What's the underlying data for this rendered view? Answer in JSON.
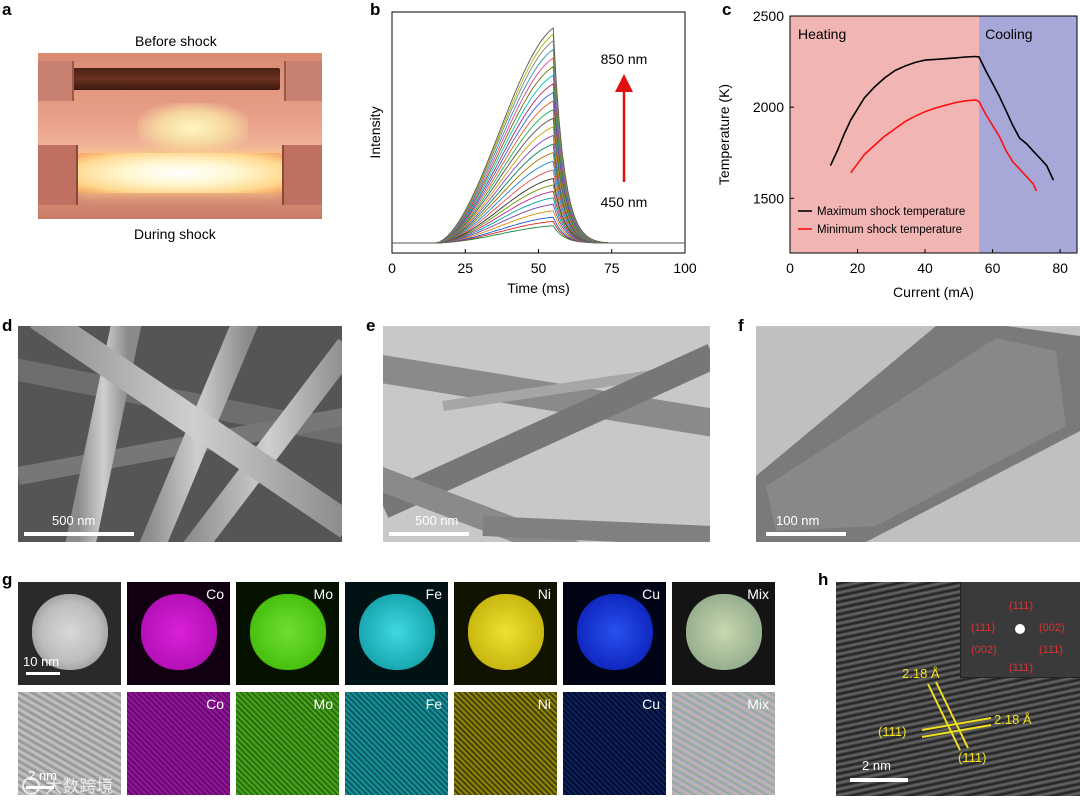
{
  "panels": {
    "a": {
      "label": "a",
      "caption_top": "Before shock",
      "caption_bottom": "During shock"
    },
    "b": {
      "label": "b",
      "arrow_top_label": "850 nm",
      "arrow_bottom_label": "450 nm",
      "colors": {
        "arrow": "#e01010"
      }
    },
    "c": {
      "label": "c",
      "region_heating_label": "Heating",
      "region_cooling_label": "Cooling",
      "colors": {
        "heating": "#f1b5b3",
        "cooling": "#a7a8d8",
        "max": "#000000",
        "min": "#ff1010"
      }
    },
    "d": {
      "label": "d",
      "scale": "500 nm"
    },
    "e": {
      "label": "e",
      "scale": "500 nm"
    },
    "f": {
      "label": "f",
      "scale": "100 nm"
    },
    "g": {
      "label": "g",
      "scale": "10 nm",
      "scale_bottom": "2 nm",
      "tiles": [
        "Co",
        "Mo",
        "Fe",
        "Ni",
        "Cu",
        "Mix"
      ],
      "colors": {
        "Co": "#d01ad8",
        "Mo": "#56d418",
        "Fe": "#20c0c8",
        "Ni": "#e2d820",
        "Cu": "#1030e0",
        "Mix": "#a8c0a0"
      }
    },
    "h": {
      "label": "h",
      "scale": "2 nm",
      "fft_labels": [
        "(111)",
        "(111)",
        "(002)",
        "(002)",
        "(111)",
        "(111)"
      ],
      "d_top": "2.18 Å",
      "d_right": "2.18 Å",
      "plane_left": "(111)",
      "plane_bottom": "(111)"
    }
  },
  "watermark": "大数跨境",
  "chart_data": [
    {
      "type": "line",
      "panel": "b",
      "xlabel": "Time (ms)",
      "ylabel": "Intensity",
      "xlim": [
        0,
        100
      ],
      "xticks": [
        0,
        25,
        50,
        75,
        100
      ],
      "grid": false,
      "legend": "none",
      "note_series": "spectral curves from 450 nm to 850 nm",
      "series_peaks": [
        0.08,
        0.1,
        0.12,
        0.15,
        0.18,
        0.21,
        0.24,
        0.27,
        0.3,
        0.34,
        0.38,
        0.42,
        0.46,
        0.5,
        0.54,
        0.58,
        0.62,
        0.66,
        0.7,
        0.74,
        0.78,
        0.82,
        0.86,
        0.9,
        0.94,
        0.97,
        1.0
      ],
      "pulse": {
        "start": 15,
        "peak": 55,
        "end": 70
      }
    },
    {
      "type": "line",
      "panel": "c",
      "xlabel": "Current (mA)",
      "ylabel": "Temperature (K)",
      "xlim": [
        0,
        85
      ],
      "ylim": [
        1200,
        2500
      ],
      "xticks": [
        0,
        20,
        40,
        60,
        80
      ],
      "yticks": [
        1500,
        2000,
        2500
      ],
      "regions": [
        {
          "name": "Heating",
          "from": 0,
          "to": 56
        },
        {
          "name": "Cooling",
          "from": 56,
          "to": 85
        }
      ],
      "legend": "bottom-left",
      "series": [
        {
          "name": "Maximum shock temperature",
          "x": [
            12,
            14,
            16,
            18,
            20,
            22,
            25,
            28,
            31,
            34,
            37,
            40,
            43,
            46,
            49,
            52,
            55,
            56,
            58,
            60,
            62,
            64,
            66,
            68,
            70,
            72,
            74,
            76,
            78
          ],
          "y": [
            1680,
            1760,
            1850,
            1930,
            1990,
            2050,
            2110,
            2160,
            2200,
            2225,
            2245,
            2258,
            2262,
            2266,
            2270,
            2275,
            2278,
            2275,
            2200,
            2130,
            2060,
            1980,
            1900,
            1830,
            1800,
            1760,
            1720,
            1680,
            1600
          ]
        },
        {
          "name": "Minimum shock temperature",
          "x": [
            18,
            20,
            22,
            25,
            28,
            31,
            34,
            37,
            40,
            43,
            46,
            49,
            52,
            55,
            56,
            58,
            60,
            62,
            64,
            66,
            68,
            70,
            72,
            73
          ],
          "y": [
            1640,
            1690,
            1740,
            1790,
            1840,
            1880,
            1920,
            1950,
            1975,
            1995,
            2010,
            2025,
            2035,
            2040,
            2030,
            1960,
            1900,
            1840,
            1760,
            1700,
            1660,
            1620,
            1580,
            1540
          ]
        }
      ]
    }
  ]
}
